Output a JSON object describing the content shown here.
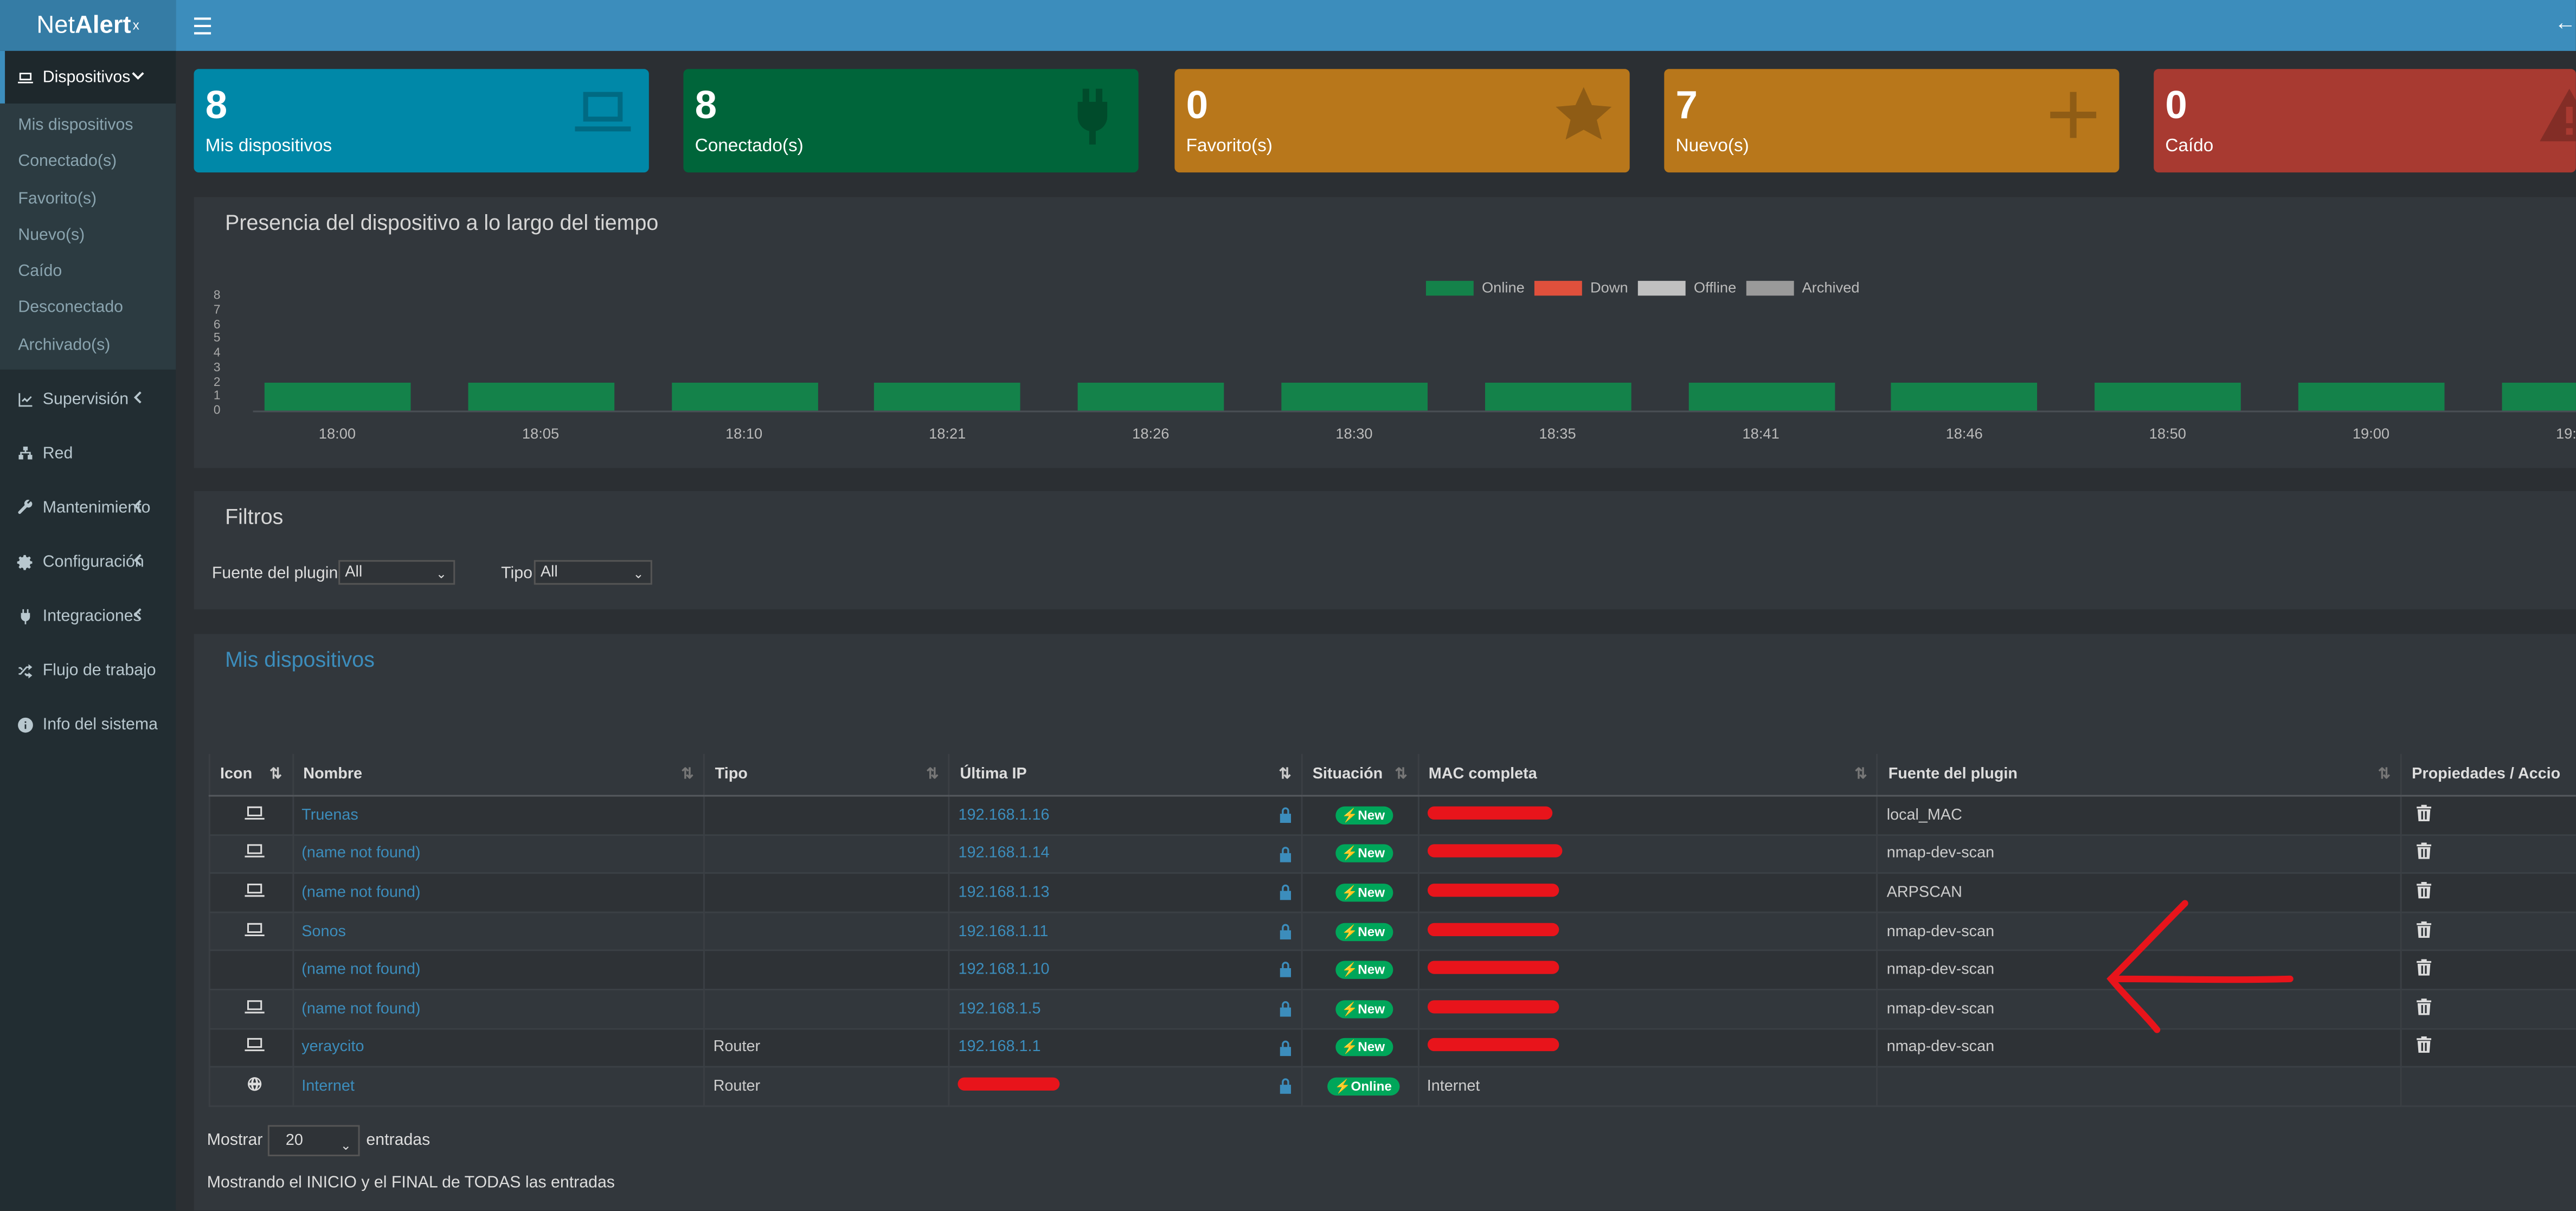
{
  "app": {
    "logo_main": "Net",
    "logo_bold": "Alert",
    "logo_sup": "x"
  },
  "sidebar": {
    "devices": {
      "label": "Dispositivos",
      "items": [
        "Mis dispositivos",
        "Conectado(s)",
        "Favorito(s)",
        "Nuevo(s)",
        "Caído",
        "Desconectado",
        "Archivado(s)"
      ]
    },
    "nav": [
      {
        "label": "Supervisión",
        "icon": "chart-icon"
      },
      {
        "label": "Red",
        "icon": "network-icon"
      },
      {
        "label": "Mantenimiento",
        "icon": "wrench-icon"
      },
      {
        "label": "Configuración",
        "icon": "gear-icon"
      },
      {
        "label": "Integraciones",
        "icon": "plug-icon"
      },
      {
        "label": "Flujo de trabajo",
        "icon": "shuffle-icon"
      },
      {
        "label": "Info del sistema",
        "icon": "info-icon"
      }
    ]
  },
  "cards": [
    {
      "value": "8",
      "label": "Mis dispositivos",
      "color": "#0088a8",
      "icon": "laptop-icon"
    },
    {
      "value": "8",
      "label": "Conectado(s)",
      "color": "#00653a",
      "icon": "plug-icon"
    },
    {
      "value": "0",
      "label": "Favorito(s)",
      "color": "#b8771b",
      "icon": "star-icon"
    },
    {
      "value": "7",
      "label": "Nuevo(s)",
      "color": "#b8771b",
      "icon": "plus-icon"
    },
    {
      "value": "0",
      "label": "Caído",
      "color": "#a83a31",
      "icon": "warning-icon"
    }
  ],
  "presence": {
    "title": "Presencia del dispositivo a lo largo del tiempo",
    "legend": [
      {
        "label": "Online",
        "color": "#14824a"
      },
      {
        "label": "Down",
        "color": "#e0503c"
      },
      {
        "label": "Offline",
        "color": "#c0c0c0"
      },
      {
        "label": "Archived",
        "color": "#9a9a9a"
      }
    ]
  },
  "chart_data": {
    "type": "bar",
    "title": "Presencia del dispositivo a lo largo del tiempo",
    "categories": [
      "18:00",
      "18:05",
      "18:10",
      "18:21",
      "18:26",
      "18:30",
      "18:35",
      "18:41",
      "18:46",
      "18:50",
      "19:00",
      "19:"
    ],
    "series": [
      {
        "name": "Online",
        "values": [
          2,
          2,
          2,
          2,
          2,
          2,
          2,
          2,
          2,
          2,
          2,
          2
        ]
      },
      {
        "name": "Down",
        "values": [
          0,
          0,
          0,
          0,
          0,
          0,
          0,
          0,
          0,
          0,
          0,
          0
        ]
      },
      {
        "name": "Offline",
        "values": [
          0,
          0,
          0,
          0,
          0,
          0,
          0,
          0,
          0,
          0,
          0,
          0
        ]
      },
      {
        "name": "Archived",
        "values": [
          0,
          0,
          0,
          0,
          0,
          0,
          0,
          0,
          0,
          0,
          0,
          0
        ]
      }
    ],
    "yticks": [
      "8",
      "7",
      "6",
      "5",
      "4",
      "3",
      "2",
      "1",
      "0"
    ],
    "ylim": [
      0,
      8
    ],
    "legend_position": "top-center"
  },
  "filters": {
    "title": "Filtros",
    "plugin_label": "Fuente del plugin",
    "plugin_value": "All",
    "type_label": "Tipo",
    "type_value": "All"
  },
  "devices": {
    "title": "Mis dispositivos",
    "columns": [
      "Icon",
      "Nombre",
      "Tipo",
      "Última IP",
      "Situación",
      "MAC completa",
      "Fuente del plugin",
      "Propiedades / Accio"
    ],
    "rows": [
      {
        "icon": "laptop-icon",
        "name": "Truenas",
        "type": "",
        "ip": "192.168.1.16",
        "status": "New",
        "mac": "",
        "source": "local_MAC"
      },
      {
        "icon": "laptop-icon",
        "name": "(name not found)",
        "type": "",
        "ip": "192.168.1.14",
        "status": "New",
        "mac": "",
        "source": "nmap-dev-scan"
      },
      {
        "icon": "laptop-icon",
        "name": "(name not found)",
        "type": "",
        "ip": "192.168.1.13",
        "status": "New",
        "mac": "",
        "source": "ARPSCAN"
      },
      {
        "icon": "laptop-icon",
        "name": "Sonos",
        "type": "",
        "ip": "192.168.1.11",
        "status": "New",
        "mac": "",
        "source": "nmap-dev-scan"
      },
      {
        "icon": "",
        "name": "(name not found)",
        "type": "",
        "ip": "192.168.1.10",
        "status": "New",
        "mac": "",
        "source": "nmap-dev-scan"
      },
      {
        "icon": "laptop-icon",
        "name": "(name not found)",
        "type": "",
        "ip": "192.168.1.5",
        "status": "New",
        "mac": "",
        "source": "nmap-dev-scan"
      },
      {
        "icon": "laptop-icon",
        "name": "yeraycito",
        "type": "Router",
        "ip": "192.168.1.1",
        "status": "New",
        "mac": "",
        "source": "nmap-dev-scan"
      },
      {
        "icon": "globe-icon",
        "name": "Internet",
        "type": "Router",
        "ip": "",
        "status": "Online",
        "mac": "Internet",
        "source": ""
      }
    ],
    "show_label": "Mostrar",
    "show_value": "20",
    "entries_label": "entradas",
    "footer": "Mostrando el INICIO y el FINAL de TODAS las entradas"
  }
}
